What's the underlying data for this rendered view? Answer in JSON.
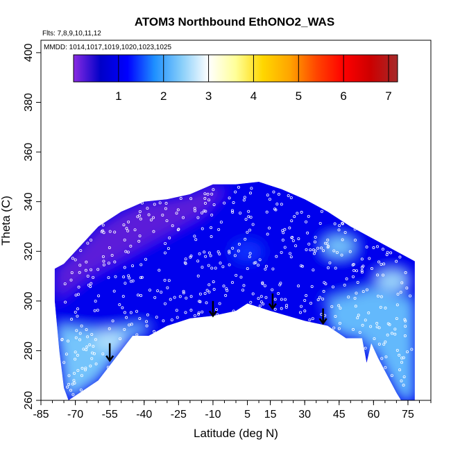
{
  "chart_data": {
    "type": "heatmap",
    "title": "ATOM3 Northbound EthONO2_WAS",
    "flights_note": "Flts: 7,8,9,10,11,12",
    "dates_note": "MMDD: 1014,1017,1019,1020,1023,1025",
    "xlabel": "Latitude (deg N)",
    "ylabel": "Theta (C)",
    "xlim": [
      -85,
      85
    ],
    "ylim": [
      260,
      405
    ],
    "x_ticks": [
      -85,
      -70,
      -55,
      -40,
      -25,
      -10,
      5,
      15,
      30,
      45,
      60,
      75
    ],
    "x_tick_labels": [
      "-85",
      "-70",
      "-55",
      "-40",
      "-25",
      "-10",
      "5",
      "15",
      "30",
      "45",
      "60",
      "75"
    ],
    "y_ticks": [
      260,
      280,
      300,
      320,
      340,
      360,
      380,
      400
    ],
    "y_tick_labels": [
      "260",
      "280",
      "300",
      "320",
      "340",
      "360",
      "380",
      "400"
    ],
    "colorbar": {
      "min": 0,
      "max": 7.2,
      "ticks": [
        1,
        2,
        3,
        4,
        5,
        6,
        7
      ],
      "tick_labels": [
        "1",
        "2",
        "3",
        "4",
        "5",
        "6",
        "7"
      ],
      "colors": [
        "#8a2be2",
        "#0000c8",
        "#0000ff",
        "#1e90ff",
        "#87cefa",
        "#ffffff",
        "#ffff99",
        "#ffd700",
        "#ffa500",
        "#ff4500",
        "#ff0000",
        "#cc0000",
        "#a52a2a"
      ]
    },
    "upper_boundary": [
      {
        "lat": -79,
        "theta": 313
      },
      {
        "lat": -75,
        "theta": 315
      },
      {
        "lat": -70,
        "theta": 320
      },
      {
        "lat": -65,
        "theta": 325
      },
      {
        "lat": -60,
        "theta": 330
      },
      {
        "lat": -55,
        "theta": 333
      },
      {
        "lat": -50,
        "theta": 336
      },
      {
        "lat": -45,
        "theta": 338
      },
      {
        "lat": -40,
        "theta": 340
      },
      {
        "lat": -30,
        "theta": 341
      },
      {
        "lat": -20,
        "theta": 343
      },
      {
        "lat": -10,
        "theta": 347
      },
      {
        "lat": 0,
        "theta": 347
      },
      {
        "lat": 10,
        "theta": 348
      },
      {
        "lat": 20,
        "theta": 345
      },
      {
        "lat": 30,
        "theta": 341
      },
      {
        "lat": 40,
        "theta": 336
      },
      {
        "lat": 50,
        "theta": 330
      },
      {
        "lat": 60,
        "theta": 325
      },
      {
        "lat": 70,
        "theta": 320
      },
      {
        "lat": 78,
        "theta": 316
      }
    ],
    "lower_boundary": [
      {
        "lat": -79,
        "theta": 300
      },
      {
        "lat": -77,
        "theta": 280
      },
      {
        "lat": -75,
        "theta": 265
      },
      {
        "lat": -73,
        "theta": 260
      },
      {
        "lat": -60,
        "theta": 268
      },
      {
        "lat": -45,
        "theta": 286
      },
      {
        "lat": -38,
        "theta": 286
      },
      {
        "lat": -30,
        "theta": 290
      },
      {
        "lat": -20,
        "theta": 293
      },
      {
        "lat": -10,
        "theta": 294
      },
      {
        "lat": 0,
        "theta": 296
      },
      {
        "lat": 5,
        "theta": 299
      },
      {
        "lat": 15,
        "theta": 296
      },
      {
        "lat": 30,
        "theta": 292
      },
      {
        "lat": 40,
        "theta": 290
      },
      {
        "lat": 48,
        "theta": 285
      },
      {
        "lat": 55,
        "theta": 285
      },
      {
        "lat": 57,
        "theta": 275
      },
      {
        "lat": 59,
        "theta": 283
      },
      {
        "lat": 62,
        "theta": 277
      },
      {
        "lat": 66,
        "theta": 270
      },
      {
        "lat": 70,
        "theta": 263
      },
      {
        "lat": 72,
        "theta": 260
      },
      {
        "lat": 78,
        "theta": 260
      }
    ],
    "regions": [
      {
        "name": "upper-left",
        "value": 0.2,
        "points": [
          [
            -79,
            300
          ],
          [
            -79,
            313
          ],
          [
            -70,
            320
          ],
          [
            -60,
            330
          ],
          [
            -50,
            336
          ],
          [
            -40,
            340
          ],
          [
            -30,
            341
          ],
          [
            -20,
            343
          ],
          [
            -10,
            347
          ],
          [
            -5,
            345
          ],
          [
            -15,
            335
          ],
          [
            -25,
            330
          ],
          [
            -35,
            325
          ],
          [
            -45,
            320
          ],
          [
            -55,
            315
          ],
          [
            -65,
            310
          ],
          [
            -72,
            305
          ]
        ]
      },
      {
        "name": "mid-band",
        "value": 1.0,
        "points": [
          [
            -79,
            290
          ],
          [
            -72,
            305
          ],
          [
            -65,
            310
          ],
          [
            -55,
            315
          ],
          [
            -45,
            320
          ],
          [
            -35,
            325
          ],
          [
            -25,
            330
          ],
          [
            -15,
            335
          ],
          [
            -5,
            345
          ],
          [
            10,
            348
          ],
          [
            30,
            341
          ],
          [
            50,
            330
          ],
          [
            70,
            320
          ],
          [
            78,
            316
          ],
          [
            78,
            300
          ],
          [
            60,
            305
          ],
          [
            40,
            300
          ],
          [
            20,
            300
          ],
          [
            0,
            297
          ],
          [
            -20,
            294
          ],
          [
            -40,
            290
          ],
          [
            -60,
            288
          ]
        ]
      },
      {
        "name": "lower-left",
        "value": 2.3,
        "points": [
          [
            -79,
            290
          ],
          [
            -60,
            288
          ],
          [
            -40,
            290
          ],
          [
            -38,
            286
          ],
          [
            -45,
            286
          ],
          [
            -60,
            268
          ],
          [
            -73,
            260
          ],
          [
            -75,
            265
          ],
          [
            -77,
            280
          ]
        ]
      },
      {
        "name": "lower-right",
        "value": 2.2,
        "points": [
          [
            40,
            300
          ],
          [
            60,
            305
          ],
          [
            78,
            300
          ],
          [
            78,
            260
          ],
          [
            72,
            260
          ],
          [
            70,
            263
          ],
          [
            66,
            270
          ],
          [
            62,
            277
          ],
          [
            59,
            283
          ],
          [
            57,
            275
          ],
          [
            55,
            285
          ],
          [
            48,
            285
          ],
          [
            40,
            290
          ]
        ]
      }
    ],
    "hotspots": [
      {
        "lat": -55,
        "theta": 284,
        "value": 2.6
      },
      {
        "lat": 45,
        "theta": 322,
        "value": 2.3
      },
      {
        "lat": 68,
        "theta": 308,
        "value": 2.5
      },
      {
        "lat": 5,
        "theta": 320,
        "value": 1.4
      }
    ],
    "arrows": [
      {
        "lat": -55,
        "theta_top": 283,
        "theta_bottom": 276
      },
      {
        "lat": -10,
        "theta_top": 300,
        "theta_bottom": 294
      },
      {
        "lat": 16,
        "theta_top": 303,
        "theta_bottom": 297
      },
      {
        "lat": 38,
        "theta_top": 297,
        "theta_bottom": 291
      }
    ],
    "samples": {
      "count": 500,
      "seed": 17
    }
  }
}
